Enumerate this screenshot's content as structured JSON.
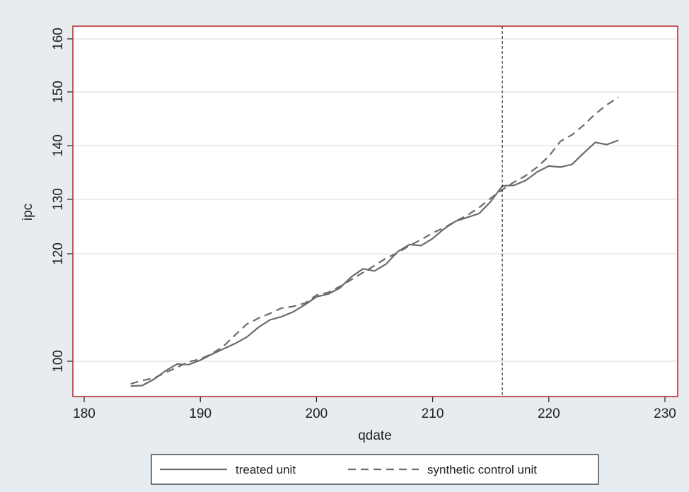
{
  "chart_data": {
    "type": "line",
    "xlabel": "qdate",
    "ylabel": "ipc",
    "xlim": [
      180,
      230
    ],
    "ylim": [
      95,
      162
    ],
    "xticks": [
      180,
      190,
      200,
      210,
      220,
      230
    ],
    "yticks": [
      100,
      120,
      130,
      140,
      150,
      160
    ],
    "grid": "horizontal",
    "vline": 216,
    "legend_position": "bottom",
    "x": [
      184,
      185,
      186,
      187,
      188,
      189,
      190,
      191,
      192,
      193,
      194,
      195,
      196,
      197,
      198,
      199,
      200,
      201,
      202,
      203,
      204,
      205,
      206,
      207,
      208,
      209,
      210,
      211,
      212,
      213,
      214,
      215,
      216,
      217,
      218,
      219,
      220,
      221,
      222,
      223,
      224,
      225,
      226
    ],
    "series": [
      {
        "name": "treated unit",
        "style": "solid",
        "values": [
          95.6,
          95.7,
          96.8,
          98.3,
          99.5,
          99.4,
          100.2,
          101.3,
          102.3,
          103.3,
          104.5,
          106.3,
          107.7,
          108.3,
          109.2,
          110.5,
          112.0,
          112.5,
          113.6,
          115.7,
          117.2,
          116.8,
          118.1,
          120.4,
          121.7,
          121.5,
          122.8,
          124.6,
          126.0,
          126.7,
          127.4,
          129.6,
          132.5,
          132.6,
          133.5,
          135.1,
          136.2,
          136.0,
          136.5,
          138.6,
          140.6,
          140.2,
          141.0
        ]
      },
      {
        "name": "synthetic control unit",
        "style": "dashed",
        "values": [
          96.0,
          96.6,
          97.0,
          98.0,
          98.9,
          99.9,
          100.4,
          101.4,
          102.8,
          104.9,
          106.9,
          108.0,
          108.9,
          109.9,
          110.2,
          110.8,
          112.3,
          112.8,
          113.9,
          115.2,
          116.5,
          117.8,
          119.2,
          120.2,
          121.5,
          122.6,
          123.8,
          124.8,
          126.0,
          127.1,
          128.5,
          130.2,
          131.8,
          133.2,
          134.4,
          136.0,
          138.0,
          140.8,
          142.0,
          143.8,
          145.9,
          147.6,
          149.0
        ]
      }
    ]
  },
  "colors": {
    "background": "#e6ecf0",
    "plot_area": "#ffffff",
    "plot_border": "#c0302f",
    "gridline": "#e8edf1",
    "series_line": "#6b6b6b",
    "vline": "#333333"
  }
}
